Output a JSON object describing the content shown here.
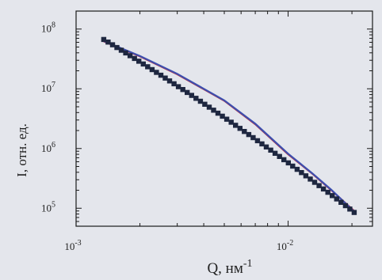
{
  "chart_data": {
    "type": "scatter",
    "xlabel": "Q, нм",
    "xlabel_sup": "-1",
    "ylabel": "I, отн. ед.",
    "x_scale": "log",
    "y_scale": "log",
    "xlim": [
      0.001,
      0.025
    ],
    "ylim": [
      50000,
      200000000
    ],
    "x_ticks": [
      {
        "value": 0.001,
        "base": "10",
        "exp": "-3"
      },
      {
        "value": 0.01,
        "base": "10",
        "exp": "-2"
      }
    ],
    "y_ticks": [
      {
        "value": 100000,
        "base": "10",
        "exp": "5"
      },
      {
        "value": 1000000,
        "base": "10",
        "exp": "6"
      },
      {
        "value": 10000000,
        "base": "10",
        "exp": "7"
      },
      {
        "value": 100000000,
        "base": "10",
        "exp": "8"
      }
    ],
    "grid": false,
    "legend": "none",
    "series": [
      {
        "kind": "markers",
        "marker": "square",
        "color": "#1e2740",
        "x_start": 0.00135,
        "x_end": 0.0205,
        "count": 58,
        "y_at_x_start": 67000000,
        "y_at_x_end": 85000
      },
      {
        "kind": "fit-line",
        "color": "#b8283a",
        "points": [
          [
            0.00135,
            62000000
          ],
          [
            0.002,
            35000000
          ],
          [
            0.003,
            17500000
          ],
          [
            0.005,
            6300000
          ],
          [
            0.007,
            2550000
          ],
          [
            0.01,
            800000
          ],
          [
            0.013,
            380000
          ],
          [
            0.016,
            200000
          ],
          [
            0.0205,
            90000
          ]
        ]
      },
      {
        "kind": "fit-line",
        "color": "#3d4fae",
        "points": [
          [
            0.00135,
            63000000
          ],
          [
            0.002,
            35500000
          ],
          [
            0.003,
            17800000
          ],
          [
            0.005,
            6400000
          ],
          [
            0.007,
            2600000
          ],
          [
            0.01,
            820000
          ],
          [
            0.013,
            385000
          ],
          [
            0.016,
            203000
          ],
          [
            0.0205,
            88000
          ]
        ]
      }
    ]
  }
}
